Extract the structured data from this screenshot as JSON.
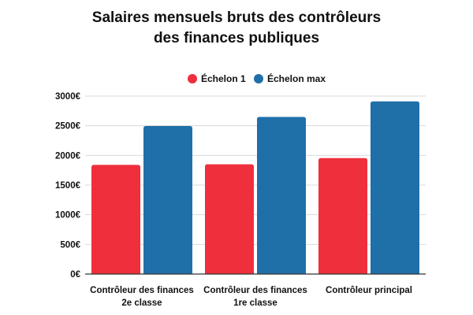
{
  "chart_data": {
    "type": "bar",
    "title_lines": [
      "Salaires mensuels bruts des contrôleurs",
      "des finances publiques"
    ],
    "categories": [
      [
        "Contrôleur des finances",
        "2e classe"
      ],
      [
        "Contrôleur des finances",
        "1re classe"
      ],
      [
        "Contrôleur principal"
      ]
    ],
    "series": [
      {
        "name": "Échelon 1",
        "color": "#ef2f3c",
        "values": [
          1840,
          1850,
          1955
        ]
      },
      {
        "name": "Échelon max",
        "color": "#1f6fa8",
        "values": [
          2495,
          2648,
          2910
        ]
      }
    ],
    "y_ticks": [
      0,
      500,
      1000,
      1500,
      2000,
      2500,
      3000
    ],
    "tick_suffix": "€",
    "ylim": [
      0,
      3000
    ],
    "grid": true,
    "legend_position": "top-center"
  }
}
